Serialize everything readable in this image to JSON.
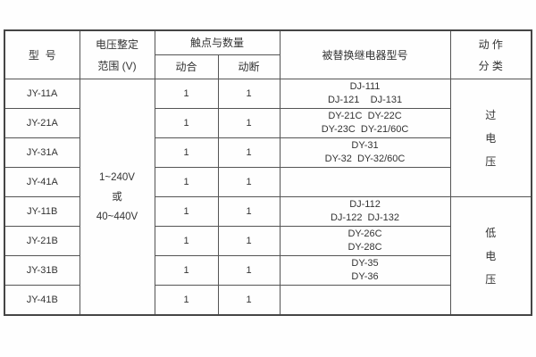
{
  "table": {
    "headers": {
      "model": "型  号",
      "voltage_line1": "电压整定",
      "voltage_line2": "范围 (V)",
      "contacts": "触点与数量",
      "normally_open": "动合",
      "normally_closed": "动断",
      "replaced_relay": "被替换继电器型号",
      "action_line1": "动 作",
      "action_line2": "分 类"
    },
    "voltage_range": [
      "1~240V",
      "或",
      "40~440V"
    ],
    "action_over": [
      "过",
      "电",
      "压"
    ],
    "action_under": [
      "低",
      "电",
      "压"
    ],
    "rows": [
      {
        "model": "JY-11A",
        "no": "1",
        "nc": "1",
        "replaced1": "DJ-111",
        "replaced2": "DJ-121    DJ-131"
      },
      {
        "model": "JY-21A",
        "no": "1",
        "nc": "1",
        "replaced1": "DY-21C  DY-22C",
        "replaced2": "DY-23C  DY-21/60C"
      },
      {
        "model": "JY-31A",
        "no": "1",
        "nc": "1",
        "replaced1": "DY-31",
        "replaced2": "DY-32  DY-32/60C"
      },
      {
        "model": "JY-41A",
        "no": "1",
        "nc": "1",
        "replaced1": "",
        "replaced2": ""
      },
      {
        "model": "JY-11B",
        "no": "1",
        "nc": "1",
        "replaced1": "DJ-112",
        "replaced2": "DJ-122  DJ-132"
      },
      {
        "model": "JY-21B",
        "no": "1",
        "nc": "1",
        "replaced1": "DY-26C",
        "replaced2": "DY-28C"
      },
      {
        "model": "JY-31B",
        "no": "1",
        "nc": "1",
        "replaced1": "DY-35",
        "replaced2": "DY-36"
      },
      {
        "model": "JY-41B",
        "no": "1",
        "nc": "1",
        "replaced1": "",
        "replaced2": ""
      }
    ],
    "colors": {
      "border": "#545454",
      "text": "#333333",
      "background": "#ffffff"
    }
  }
}
